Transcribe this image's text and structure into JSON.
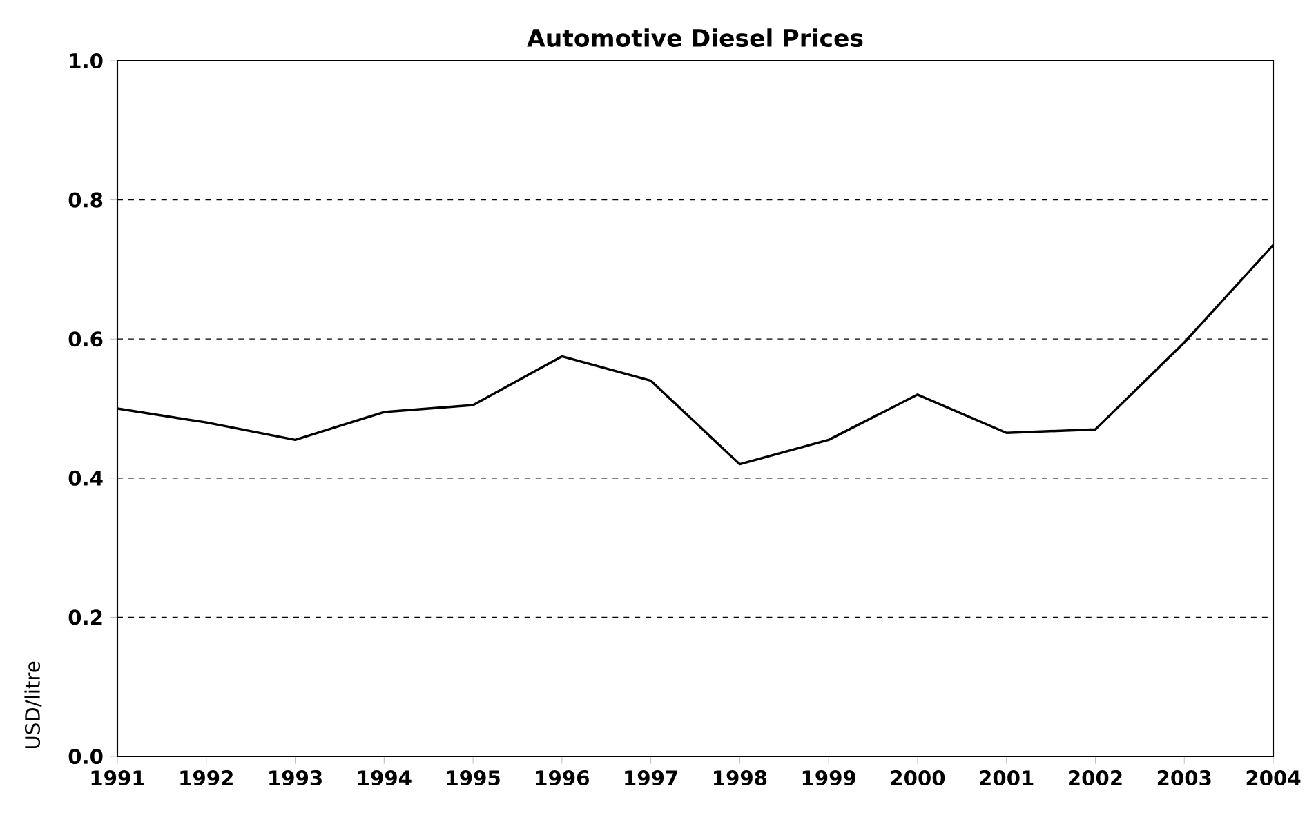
{
  "chart_data": {
    "type": "line",
    "title": "Automotive Diesel Prices",
    "ylabel": "USD/litre",
    "categories": [
      "1991",
      "1992",
      "1993",
      "1994",
      "1995",
      "1996",
      "1997",
      "1998",
      "1999",
      "2000",
      "2001",
      "2002",
      "2003",
      "2004"
    ],
    "series": [
      {
        "color": "#000000",
        "values": [
          0.5,
          0.48,
          0.455,
          0.495,
          0.505,
          0.575,
          0.54,
          0.42,
          0.455,
          0.52,
          0.465,
          0.47,
          0.595,
          0.735
        ]
      }
    ],
    "ylim": [
      0,
      1
    ],
    "yticks": [
      {
        "value": 0,
        "label": "0.0"
      },
      {
        "value": 0.2,
        "label": "0.2"
      },
      {
        "value": 0.4,
        "label": "0.4"
      },
      {
        "value": 0.6,
        "label": "0.6"
      },
      {
        "value": 0.8,
        "label": "0.8"
      },
      {
        "value": 1,
        "label": "1.0"
      }
    ],
    "grid": "y",
    "marker": "none",
    "line_style": "solid"
  }
}
